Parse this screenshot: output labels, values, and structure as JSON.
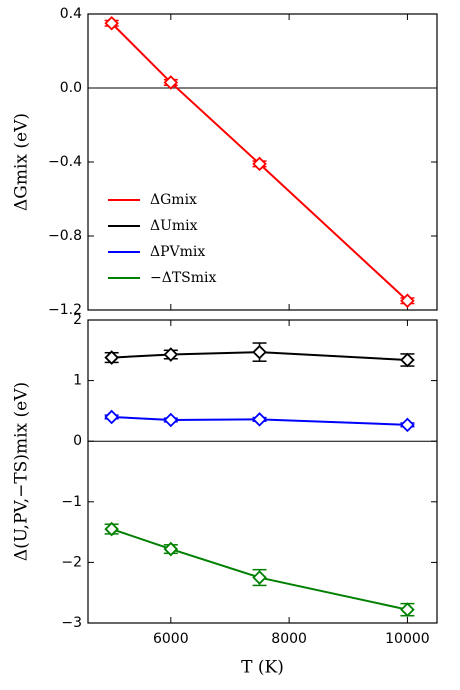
{
  "chart_data": [
    {
      "type": "line",
      "ylabel": "ΔGmix (eV)",
      "x": [
        5000,
        6000,
        7500,
        10000
      ],
      "xlim": [
        4600,
        10500
      ],
      "ylim": [
        -1.2,
        0.4
      ],
      "yticks": [
        {
          "value": -1.2,
          "label": "−1.2"
        },
        {
          "value": -0.8,
          "label": "−0.8"
        },
        {
          "value": -0.4,
          "label": "−0.4"
        },
        {
          "value": 0,
          "label": "0.0"
        },
        0.4
      ],
      "zero_line": true,
      "series": [
        {
          "name": "ΔGmix",
          "color": "#ff0000",
          "values": [
            0.35,
            0.03,
            -0.41,
            -1.15
          ],
          "errors": [
            0.015,
            0.015,
            0.015,
            0.015
          ]
        }
      ]
    },
    {
      "type": "line",
      "ylabel": "Δ(U,PV,−TS)mix (eV)",
      "xlabel": "T (K)",
      "x": [
        5000,
        6000,
        7500,
        10000
      ],
      "xlim": [
        4600,
        10500
      ],
      "xticks": [
        6000,
        8000,
        10000
      ],
      "ylim": [
        -3,
        2
      ],
      "yticks": [
        {
          "value": -3,
          "label": "−3"
        },
        {
          "value": -2,
          "label": "−2"
        },
        {
          "value": -1,
          "label": "−1"
        },
        0,
        1,
        2
      ],
      "zero_line": true,
      "series": [
        {
          "name": "ΔUmix",
          "color": "#000000",
          "values": [
            1.38,
            1.43,
            1.47,
            1.34
          ],
          "errors": [
            0.08,
            0.07,
            0.15,
            0.1
          ]
        },
        {
          "name": "ΔPVmix",
          "color": "#0000ff",
          "values": [
            0.4,
            0.35,
            0.36,
            0.27
          ],
          "errors": [
            0.03,
            0.03,
            0.03,
            0.03
          ]
        },
        {
          "name": "−ΔTSmix",
          "color": "#008000",
          "values": [
            -1.45,
            -1.78,
            -2.25,
            -2.78
          ],
          "errors": [
            0.08,
            0.07,
            0.13,
            0.1
          ]
        }
      ]
    }
  ]
}
